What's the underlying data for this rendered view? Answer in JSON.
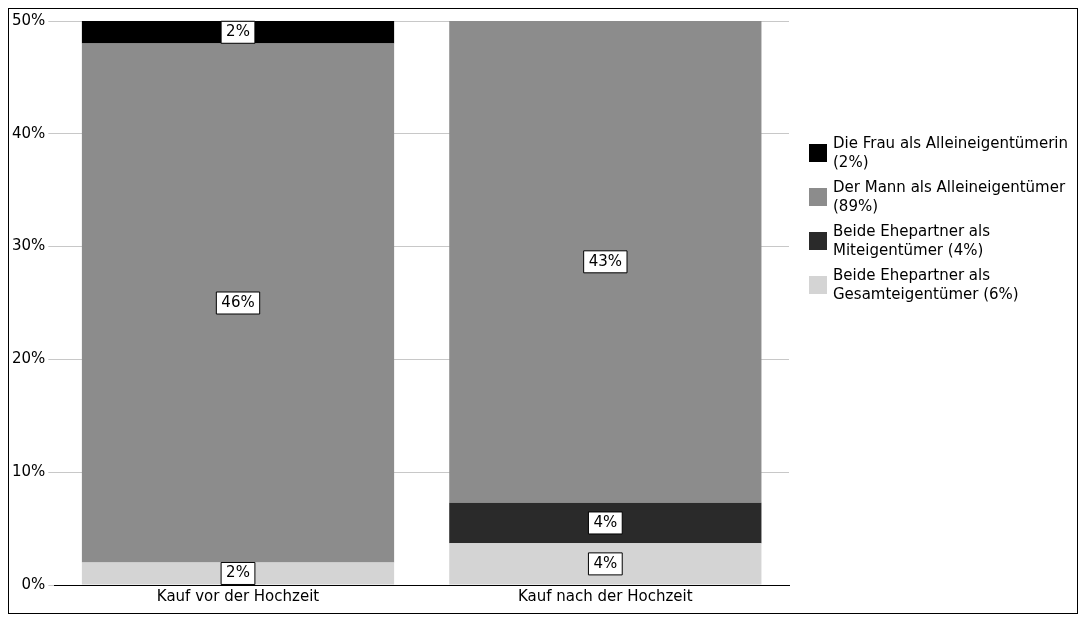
{
  "chart_data": {
    "type": "bar",
    "stacked": true,
    "categories": [
      "Kauf vor der Hochzeit",
      "Kauf nach der Hochzeit"
    ],
    "series": [
      {
        "name": "Beide Ehepartner als Gesamteigentümer (6%)",
        "color": "#d4d4d4",
        "values": [
          2,
          3.7
        ],
        "value_labels": [
          "2%",
          "4%"
        ]
      },
      {
        "name": "Beide Ehepartner als Miteigentümer (4%)",
        "color": "#2a2a2a",
        "values": [
          0,
          3.6
        ],
        "value_labels": [
          null,
          "4%"
        ]
      },
      {
        "name": "Der Mann als Alleineigentümer (89%)",
        "color": "#8c8c8c",
        "values": [
          46,
          42.7
        ],
        "value_labels": [
          "46%",
          "43%"
        ]
      },
      {
        "name": "Die Frau als Alleineigentümerin (2%)",
        "color": "#000000",
        "values": [
          2,
          0
        ],
        "value_labels": [
          "2%",
          null
        ]
      }
    ],
    "ylim": [
      0,
      50
    ],
    "yticks": [
      {
        "value": 0,
        "label": "0%"
      },
      {
        "value": 10,
        "label": "10%"
      },
      {
        "value": 20,
        "label": "20%"
      },
      {
        "value": 30,
        "label": "30%"
      },
      {
        "value": 40,
        "label": "40%"
      },
      {
        "value": 50,
        "label": "50%"
      }
    ],
    "grid": "y",
    "legend": "right"
  }
}
